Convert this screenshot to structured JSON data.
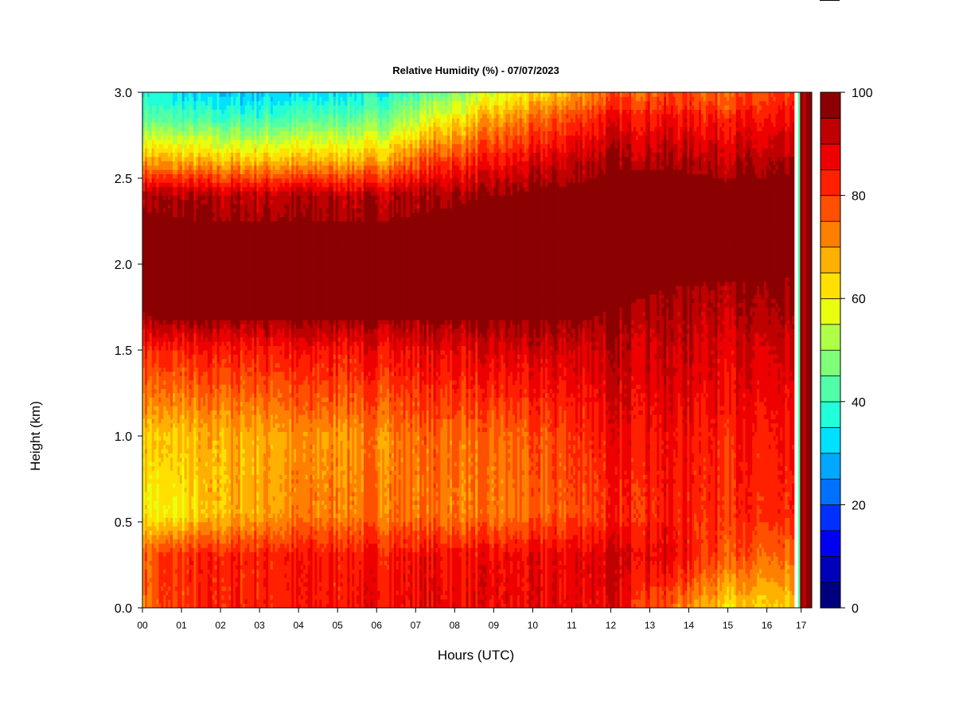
{
  "chart_data": {
    "type": "heatmap",
    "title": "Relative Humidity (%) - 07/07/2023",
    "xlabel": "Hours (UTC)",
    "ylabel": "Height (km)",
    "x_ticks": [
      "00",
      "01",
      "02",
      "03",
      "04",
      "05",
      "06",
      "07",
      "08",
      "09",
      "10",
      "11",
      "12",
      "13",
      "14",
      "15",
      "16",
      "17"
    ],
    "xlim": [
      0,
      17.15
    ],
    "y_ticks": [
      "0.0",
      "0.5",
      "1.0",
      "1.5",
      "2.0",
      "2.5",
      "3.0"
    ],
    "ylim": [
      0,
      3.0
    ],
    "colorbar": {
      "ticks": [
        "0",
        "20",
        "40",
        "60",
        "80",
        "100"
      ],
      "range": [
        0,
        100
      ],
      "levels": [
        0,
        5,
        10,
        15,
        20,
        25,
        30,
        35,
        40,
        45,
        50,
        55,
        60,
        65,
        70,
        75,
        80,
        85,
        90,
        95,
        100
      ],
      "colors": [
        "#00007f",
        "#0000b8",
        "#0000f0",
        "#0030ff",
        "#0070ff",
        "#00a8ff",
        "#00e0ff",
        "#20ffd8",
        "#50ffa8",
        "#80ff78",
        "#b0ff48",
        "#e8ff10",
        "#ffe000",
        "#ffb000",
        "#ff8000",
        "#ff5000",
        "#ff2000",
        "#ee0000",
        "#bf0000",
        "#8b0000"
      ]
    },
    "profiles": [
      {
        "time": 0.0,
        "rh": [
          [
            0.0,
            74
          ],
          [
            0.3,
            76
          ],
          [
            0.55,
            62
          ],
          [
            1.0,
            66
          ],
          [
            1.5,
            82
          ],
          [
            1.7,
            96
          ],
          [
            2.1,
            99
          ],
          [
            2.4,
            95
          ],
          [
            2.6,
            70
          ],
          [
            2.85,
            45
          ],
          [
            3.0,
            38
          ]
        ]
      },
      {
        "time": 0.5,
        "rh": [
          [
            0.0,
            78
          ],
          [
            0.3,
            80
          ],
          [
            0.55,
            58
          ],
          [
            1.0,
            64
          ],
          [
            1.5,
            82
          ],
          [
            1.7,
            97
          ],
          [
            2.1,
            99
          ],
          [
            2.4,
            94
          ],
          [
            2.6,
            68
          ],
          [
            2.85,
            42
          ],
          [
            3.0,
            34
          ]
        ]
      },
      {
        "time": 2.0,
        "rh": [
          [
            0.0,
            83
          ],
          [
            0.3,
            83
          ],
          [
            0.55,
            66
          ],
          [
            1.0,
            67
          ],
          [
            1.5,
            84
          ],
          [
            1.7,
            97
          ],
          [
            2.1,
            99
          ],
          [
            2.4,
            93
          ],
          [
            2.6,
            66
          ],
          [
            2.85,
            40
          ],
          [
            3.0,
            30
          ]
        ]
      },
      {
        "time": 4.0,
        "rh": [
          [
            0.0,
            84
          ],
          [
            0.3,
            84
          ],
          [
            0.55,
            72
          ],
          [
            1.0,
            70
          ],
          [
            1.5,
            85
          ],
          [
            1.7,
            97
          ],
          [
            2.1,
            99
          ],
          [
            2.4,
            93
          ],
          [
            2.6,
            67
          ],
          [
            2.85,
            42
          ],
          [
            3.0,
            32
          ]
        ]
      },
      {
        "time": 6.0,
        "rh": [
          [
            0.0,
            86
          ],
          [
            0.3,
            85
          ],
          [
            0.55,
            74
          ],
          [
            1.0,
            72
          ],
          [
            1.5,
            86
          ],
          [
            1.7,
            97
          ],
          [
            2.1,
            99
          ],
          [
            2.4,
            93
          ],
          [
            2.6,
            68
          ],
          [
            2.85,
            45
          ],
          [
            3.0,
            36
          ]
        ]
      },
      {
        "time": 7.5,
        "rh": [
          [
            0.0,
            88
          ],
          [
            0.3,
            86
          ],
          [
            0.55,
            74
          ],
          [
            1.0,
            76
          ],
          [
            1.5,
            88
          ],
          [
            1.7,
            98
          ],
          [
            2.1,
            99
          ],
          [
            2.4,
            95
          ],
          [
            2.6,
            80
          ],
          [
            2.85,
            58
          ],
          [
            3.0,
            45
          ]
        ]
      },
      {
        "time": 9.0,
        "rh": [
          [
            0.0,
            86
          ],
          [
            0.3,
            86
          ],
          [
            0.55,
            72
          ],
          [
            1.0,
            74
          ],
          [
            1.5,
            88
          ],
          [
            1.7,
            97
          ],
          [
            2.1,
            99
          ],
          [
            2.4,
            96
          ],
          [
            2.6,
            84
          ],
          [
            2.85,
            68
          ],
          [
            3.0,
            55
          ]
        ]
      },
      {
        "time": 10.5,
        "rh": [
          [
            0.0,
            87
          ],
          [
            0.3,
            87
          ],
          [
            0.55,
            76
          ],
          [
            1.0,
            78
          ],
          [
            1.5,
            90
          ],
          [
            1.7,
            97
          ],
          [
            2.1,
            99
          ],
          [
            2.4,
            98
          ],
          [
            2.6,
            90
          ],
          [
            2.85,
            76
          ],
          [
            3.0,
            64
          ]
        ]
      },
      {
        "time": 12.0,
        "rh": [
          [
            0.0,
            88
          ],
          [
            0.3,
            90
          ],
          [
            0.55,
            82
          ],
          [
            1.0,
            86
          ],
          [
            1.5,
            92
          ],
          [
            1.7,
            96
          ],
          [
            2.1,
            99
          ],
          [
            2.4,
            99
          ],
          [
            2.6,
            95
          ],
          [
            2.85,
            86
          ],
          [
            3.0,
            76
          ]
        ]
      },
      {
        "time": 13.5,
        "rh": [
          [
            0.0,
            76
          ],
          [
            0.3,
            88
          ],
          [
            0.55,
            84
          ],
          [
            1.0,
            86
          ],
          [
            1.5,
            92
          ],
          [
            1.7,
            94
          ],
          [
            2.1,
            99
          ],
          [
            2.4,
            99
          ],
          [
            2.6,
            95
          ],
          [
            2.85,
            86
          ],
          [
            3.0,
            78
          ]
        ]
      },
      {
        "time": 15.0,
        "rh": [
          [
            0.0,
            64
          ],
          [
            0.3,
            78
          ],
          [
            0.55,
            82
          ],
          [
            1.0,
            84
          ],
          [
            1.5,
            90
          ],
          [
            1.7,
            93
          ],
          [
            2.1,
            99
          ],
          [
            2.4,
            99
          ],
          [
            2.6,
            93
          ],
          [
            2.85,
            84
          ],
          [
            3.0,
            76
          ]
        ]
      },
      {
        "time": 16.7,
        "rh": [
          [
            0.0,
            62
          ],
          [
            0.3,
            72
          ],
          [
            0.55,
            80
          ],
          [
            1.0,
            82
          ],
          [
            1.5,
            88
          ],
          [
            1.7,
            92
          ],
          [
            2.1,
            99
          ],
          [
            2.4,
            99
          ],
          [
            2.6,
            92
          ],
          [
            2.85,
            84
          ],
          [
            3.0,
            78
          ]
        ]
      }
    ],
    "end_columns": [
      {
        "time": 16.8,
        "rh": 40
      },
      {
        "time": 16.85,
        "rh": 99
      },
      {
        "time": 16.92,
        "rh": 90
      },
      {
        "time": 17.0,
        "rh": 99
      },
      {
        "time": 17.08,
        "rh": 96
      }
    ]
  }
}
